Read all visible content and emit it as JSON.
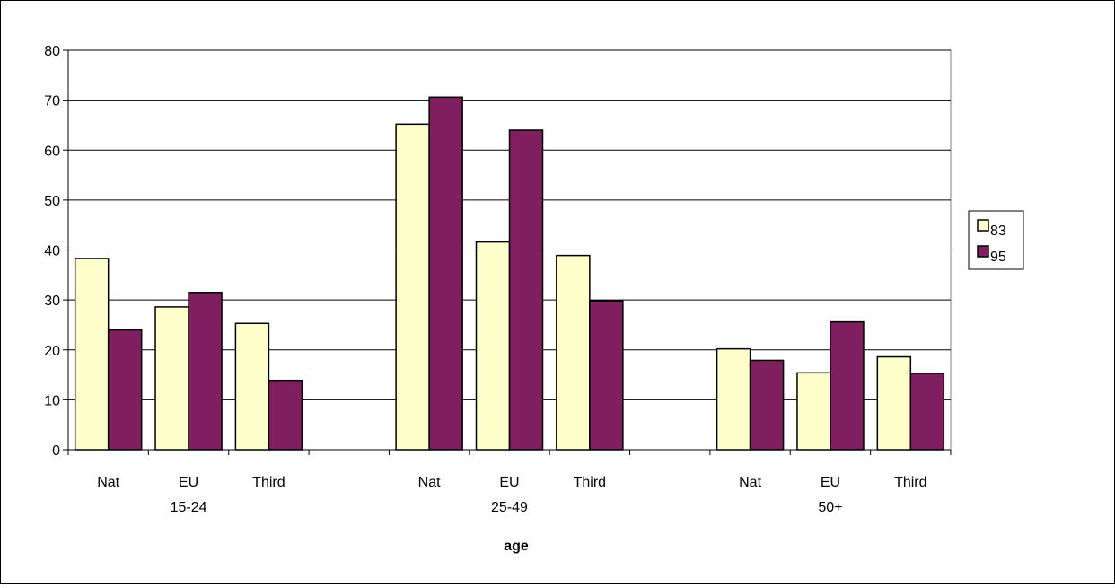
{
  "chart_data": {
    "type": "bar",
    "title": "",
    "xlabel": "age",
    "ylabel": "",
    "ylim": [
      0,
      80
    ],
    "yticks": [
      0,
      10,
      20,
      30,
      40,
      50,
      60,
      70,
      80
    ],
    "grid": true,
    "legend_position": "right",
    "categories": [
      "Nat",
      "EU",
      "Third",
      "Nat",
      "EU",
      "Third",
      "Nat",
      "EU",
      "Third"
    ],
    "groups": [
      {
        "label": "15-24",
        "categories": [
          "Nat",
          "EU",
          "Third"
        ]
      },
      {
        "label": "25-49",
        "categories": [
          "Nat",
          "EU",
          "Third"
        ]
      },
      {
        "label": "50+",
        "categories": [
          "Nat",
          "EU",
          "Third"
        ]
      }
    ],
    "series": [
      {
        "name": "83",
        "color": "#ffffcc",
        "values": [
          38.3,
          28.6,
          25.3,
          65.2,
          41.6,
          38.9,
          20.2,
          15.4,
          18.6
        ]
      },
      {
        "name": "95",
        "color": "#7f1f5f",
        "values": [
          24.0,
          31.5,
          13.9,
          70.6,
          64.0,
          29.8,
          17.9,
          25.6,
          15.3
        ]
      }
    ]
  }
}
